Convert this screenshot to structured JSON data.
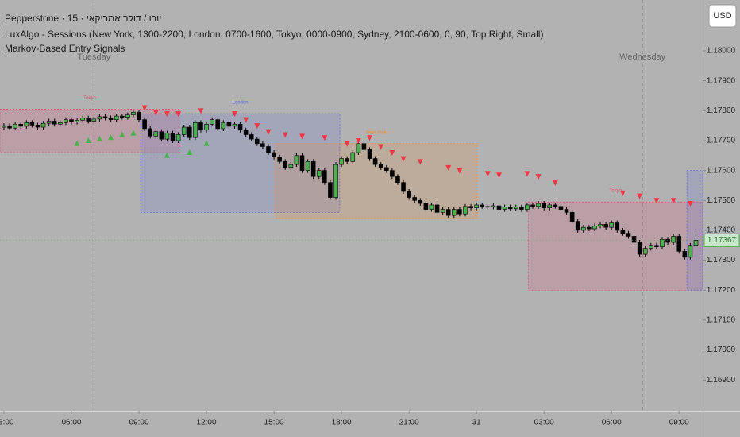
{
  "chart_data": {
    "type": "candlestick",
    "header": [
      "Pepperstone · 15 · יורו / דולר אמריקאי",
      "LuxAlgo - Sessions (New York, 1300-2200, London, 0700-1600, Tokyo, 0000-0900, Sydney, 2100-0600, 0, 90, Top Right, Small)",
      "Markov-Based Entry Signals"
    ],
    "currency": "USD",
    "xlim": [
      -0.7,
      124.2
    ],
    "ylim": [
      1.16797,
      1.1817
    ],
    "xticks": [
      {
        "value": 0,
        "label": "03:00"
      },
      {
        "value": 12,
        "label": "06:00"
      },
      {
        "value": 24,
        "label": "09:00"
      },
      {
        "value": 36,
        "label": "12:00"
      },
      {
        "value": 48,
        "label": "15:00"
      },
      {
        "value": 60,
        "label": "18:00"
      },
      {
        "value": 72,
        "label": "21:00"
      },
      {
        "value": 84,
        "label": "31"
      },
      {
        "value": 96,
        "label": "03:00"
      },
      {
        "value": 108,
        "label": "06:00"
      },
      {
        "value": 120,
        "label": "09:00"
      }
    ],
    "yticks": [
      {
        "value": 1.169,
        "label": "1.16900"
      },
      {
        "value": 1.17,
        "label": "1.17000"
      },
      {
        "value": 1.171,
        "label": "1.17100"
      },
      {
        "value": 1.172,
        "label": "1.17200"
      },
      {
        "value": 1.173,
        "label": "1.17300"
      },
      {
        "value": 1.174,
        "label": "1.17400"
      },
      {
        "value": 1.175,
        "label": "1.17500"
      },
      {
        "value": 1.176,
        "label": "1.17600"
      },
      {
        "value": 1.177,
        "label": "1.17700"
      },
      {
        "value": 1.178,
        "label": "1.17800"
      },
      {
        "value": 1.179,
        "label": "1.17900"
      },
      {
        "value": 1.18,
        "label": "1.18000"
      }
    ],
    "up_color": "#4caf50",
    "down_color": "#000000",
    "days": [
      {
        "label": "Tuesday",
        "index": 16
      },
      {
        "label": "Wednesday",
        "index": 113.5
      }
    ],
    "sessions": [
      {
        "name": "Tokyo",
        "start": -0.7,
        "end": 31.2,
        "top": 1.17805,
        "bottom": 1.1766,
        "color": "#e0506e"
      },
      {
        "name": "London",
        "start": 24.3,
        "end": 59.7,
        "top": 1.1779,
        "bottom": 1.1746,
        "color": "#5c6bd6"
      },
      {
        "name": "New York",
        "start": 48.3,
        "end": 84.1,
        "top": 1.1769,
        "bottom": 1.1744,
        "color": "#f08c30"
      },
      {
        "name": "Tokyo",
        "start": 93.2,
        "end": 124.2,
        "top": 1.17495,
        "bottom": 1.172,
        "color": "#e0506e"
      },
      {
        "start": 121.4,
        "end": 124.2,
        "top": 1.176,
        "bottom": 1.172,
        "color": "#5c6bd6"
      }
    ],
    "buy_signals": [
      [
        13,
        1.1769
      ],
      [
        15,
        1.177
      ],
      [
        17,
        1.17705
      ],
      [
        19,
        1.1771
      ],
      [
        21,
        1.1772
      ],
      [
        23,
        1.17725
      ],
      [
        29,
        1.1765
      ],
      [
        33,
        1.1766
      ],
      [
        36,
        1.1769
      ]
    ],
    "sell_signals": [
      [
        25,
        1.1781
      ],
      [
        27,
        1.17795
      ],
      [
        29,
        1.1779
      ],
      [
        31,
        1.1779
      ],
      [
        35,
        1.178
      ],
      [
        41,
        1.1779
      ],
      [
        43,
        1.1777
      ],
      [
        45,
        1.1775
      ],
      [
        47,
        1.1773
      ],
      [
        50,
        1.1772
      ],
      [
        53,
        1.17715
      ],
      [
        57,
        1.1771
      ],
      [
        61,
        1.1769
      ],
      [
        63,
        1.177
      ],
      [
        65,
        1.1771
      ],
      [
        67,
        1.1768
      ],
      [
        69,
        1.1766
      ],
      [
        71,
        1.1764
      ],
      [
        74,
        1.1763
      ],
      [
        79,
        1.1761
      ],
      [
        81,
        1.176
      ],
      [
        86,
        1.1759
      ],
      [
        88,
        1.17585
      ],
      [
        93,
        1.1759
      ],
      [
        95,
        1.1758
      ],
      [
        98,
        1.1756
      ],
      [
        110,
        1.17525
      ],
      [
        113,
        1.17515
      ],
      [
        116,
        1.175
      ],
      [
        119,
        1.175
      ],
      [
        122,
        1.1749
      ]
    ],
    "candles": [
      [
        1.17745,
        1.17758,
        1.17737,
        1.1775
      ],
      [
        1.1775,
        1.17758,
        1.17734,
        1.17742
      ],
      [
        1.17742,
        1.17763,
        1.17734,
        1.17755
      ],
      [
        1.17755,
        1.17763,
        1.1774,
        1.17748
      ],
      [
        1.17748,
        1.17768,
        1.1774,
        1.1776
      ],
      [
        1.1776,
        1.17768,
        1.17744,
        1.17752
      ],
      [
        1.17752,
        1.1776,
        1.17737,
        1.17745
      ],
      [
        1.17745,
        1.17766,
        1.17737,
        1.17758
      ],
      [
        1.17758,
        1.17773,
        1.1775,
        1.17765
      ],
      [
        1.17765,
        1.17773,
        1.17747,
        1.17755
      ],
      [
        1.17755,
        1.17768,
        1.17747,
        1.1776
      ],
      [
        1.1776,
        1.17778,
        1.17752,
        1.1777
      ],
      [
        1.1777,
        1.17778,
        1.17754,
        1.17762
      ],
      [
        1.17762,
        1.17776,
        1.17754,
        1.17768
      ],
      [
        1.17768,
        1.17783,
        1.1776,
        1.17775
      ],
      [
        1.17775,
        1.17783,
        1.17757,
        1.17765
      ],
      [
        1.17765,
        1.1778,
        1.17757,
        1.17772
      ],
      [
        1.17772,
        1.17788,
        1.17764,
        1.1778
      ],
      [
        1.1778,
        1.17788,
        1.17768,
        1.17776
      ],
      [
        1.17776,
        1.17784,
        1.17762,
        1.1777
      ],
      [
        1.1777,
        1.1779,
        1.17762,
        1.17782
      ],
      [
        1.17782,
        1.1779,
        1.1777,
        1.17778
      ],
      [
        1.17778,
        1.17794,
        1.1777,
        1.17786
      ],
      [
        1.17786,
        1.17803,
        1.17778,
        1.17795
      ],
      [
        1.17795,
        1.17803,
        1.17762,
        1.1777
      ],
      [
        1.1777,
        1.17778,
        1.17732,
        1.1774
      ],
      [
        1.1774,
        1.17748,
        1.17707,
        1.17715
      ],
      [
        1.17715,
        1.17738,
        1.17707,
        1.1773
      ],
      [
        1.1773,
        1.17738,
        1.17697,
        1.17705
      ],
      [
        1.17705,
        1.17733,
        1.17697,
        1.17725
      ],
      [
        1.17725,
        1.17733,
        1.17692,
        1.177
      ],
      [
        1.177,
        1.17728,
        1.17692,
        1.1772
      ],
      [
        1.1772,
        1.17753,
        1.17712,
        1.17745
      ],
      [
        1.17745,
        1.17753,
        1.17702,
        1.1771
      ],
      [
        1.1771,
        1.17768,
        1.17702,
        1.1776
      ],
      [
        1.1776,
        1.17768,
        1.17727,
        1.17735
      ],
      [
        1.17735,
        1.17763,
        1.17727,
        1.17755
      ],
      [
        1.17755,
        1.17778,
        1.17747,
        1.1777
      ],
      [
        1.1777,
        1.17778,
        1.17732,
        1.1774
      ],
      [
        1.1774,
        1.17768,
        1.17732,
        1.1776
      ],
      [
        1.1776,
        1.17768,
        1.1774,
        1.17748
      ],
      [
        1.17748,
        1.17763,
        1.1774,
        1.17755
      ],
      [
        1.17755,
        1.17763,
        1.17727,
        1.17735
      ],
      [
        1.17735,
        1.17743,
        1.17712,
        1.1772
      ],
      [
        1.1772,
        1.17728,
        1.17697,
        1.17705
      ],
      [
        1.17705,
        1.17713,
        1.17682,
        1.1769
      ],
      [
        1.1769,
        1.17698,
        1.17672,
        1.1768
      ],
      [
        1.1768,
        1.17688,
        1.17652,
        1.1766
      ],
      [
        1.1766,
        1.17668,
        1.17637,
        1.17645
      ],
      [
        1.17645,
        1.17653,
        1.17622,
        1.1763
      ],
      [
        1.1763,
        1.17638,
        1.17602,
        1.1761
      ],
      [
        1.1761,
        1.17628,
        1.17602,
        1.1762
      ],
      [
        1.1762,
        1.17658,
        1.17612,
        1.1765
      ],
      [
        1.1765,
        1.17658,
        1.17592,
        1.176
      ],
      [
        1.176,
        1.17638,
        1.17592,
        1.1763
      ],
      [
        1.1763,
        1.17638,
        1.17572,
        1.1758
      ],
      [
        1.1758,
        1.17608,
        1.17572,
        1.176
      ],
      [
        1.176,
        1.17608,
        1.17552,
        1.1756
      ],
      [
        1.1756,
        1.17568,
        1.17502,
        1.1751
      ],
      [
        1.1751,
        1.17628,
        1.17502,
        1.1762
      ],
      [
        1.1762,
        1.17648,
        1.17612,
        1.1764
      ],
      [
        1.1764,
        1.17648,
        1.17622,
        1.1763
      ],
      [
        1.1763,
        1.17668,
        1.17622,
        1.1766
      ],
      [
        1.1766,
        1.17698,
        1.17652,
        1.1769
      ],
      [
        1.1769,
        1.17698,
        1.17662,
        1.1767
      ],
      [
        1.1767,
        1.17678,
        1.17632,
        1.1764
      ],
      [
        1.1764,
        1.17648,
        1.17612,
        1.1762
      ],
      [
        1.1762,
        1.17628,
        1.17602,
        1.1761
      ],
      [
        1.1761,
        1.17618,
        1.17592,
        1.176
      ],
      [
        1.176,
        1.17608,
        1.17572,
        1.1758
      ],
      [
        1.1758,
        1.17588,
        1.17552,
        1.1756
      ],
      [
        1.1756,
        1.17568,
        1.17522,
        1.1753
      ],
      [
        1.1753,
        1.17538,
        1.17502,
        1.1751
      ],
      [
        1.1751,
        1.17518,
        1.17492,
        1.175
      ],
      [
        1.175,
        1.17508,
        1.17482,
        1.1749
      ],
      [
        1.1749,
        1.17498,
        1.17462,
        1.1747
      ],
      [
        1.1747,
        1.17493,
        1.17462,
        1.17485
      ],
      [
        1.17485,
        1.17493,
        1.17452,
        1.1746
      ],
      [
        1.1746,
        1.17478,
        1.17452,
        1.1747
      ],
      [
        1.1747,
        1.17478,
        1.17442,
        1.1745
      ],
      [
        1.1745,
        1.17478,
        1.17442,
        1.1747
      ],
      [
        1.1747,
        1.17478,
        1.17447,
        1.17455
      ],
      [
        1.17455,
        1.17488,
        1.17447,
        1.1748
      ],
      [
        1.1748,
        1.17488,
        1.17467,
        1.17475
      ],
      [
        1.17475,
        1.17493,
        1.17467,
        1.17485
      ],
      [
        1.17485,
        1.17493,
        1.17472,
        1.1748
      ],
      [
        1.1748,
        1.17488,
        1.1747,
        1.17478
      ],
      [
        1.17478,
        1.1749,
        1.1747,
        1.17482
      ],
      [
        1.17482,
        1.1749,
        1.17462,
        1.1747
      ],
      [
        1.1747,
        1.17486,
        1.17462,
        1.17478
      ],
      [
        1.17478,
        1.17486,
        1.17464,
        1.17472
      ],
      [
        1.17472,
        1.17486,
        1.17464,
        1.17478
      ],
      [
        1.17478,
        1.17486,
        1.17462,
        1.1747
      ],
      [
        1.1747,
        1.17493,
        1.17462,
        1.17485
      ],
      [
        1.17485,
        1.17493,
        1.17472,
        1.1748
      ],
      [
        1.1748,
        1.17498,
        1.17472,
        1.1749
      ],
      [
        1.1749,
        1.17498,
        1.17467,
        1.17475
      ],
      [
        1.17475,
        1.17493,
        1.17467,
        1.17485
      ],
      [
        1.17485,
        1.17493,
        1.17472,
        1.1748
      ],
      [
        1.1748,
        1.17488,
        1.17462,
        1.1747
      ],
      [
        1.1747,
        1.17478,
        1.17452,
        1.1746
      ],
      [
        1.1746,
        1.17468,
        1.17422,
        1.1743
      ],
      [
        1.1743,
        1.17438,
        1.17392,
        1.174
      ],
      [
        1.174,
        1.17418,
        1.17392,
        1.1741
      ],
      [
        1.1741,
        1.17418,
        1.17397,
        1.17405
      ],
      [
        1.17405,
        1.17423,
        1.17397,
        1.17415
      ],
      [
        1.17415,
        1.17428,
        1.17407,
        1.1742
      ],
      [
        1.1742,
        1.17428,
        1.17402,
        1.1741
      ],
      [
        1.1741,
        1.17433,
        1.17402,
        1.17425
      ],
      [
        1.17425,
        1.17433,
        1.17392,
        1.174
      ],
      [
        1.174,
        1.17408,
        1.17382,
        1.1739
      ],
      [
        1.1739,
        1.17398,
        1.17372,
        1.1738
      ],
      [
        1.1738,
        1.17388,
        1.17352,
        1.1736
      ],
      [
        1.1736,
        1.17368,
        1.17312,
        1.1732
      ],
      [
        1.1732,
        1.17348,
        1.17312,
        1.1734
      ],
      [
        1.1734,
        1.17358,
        1.17332,
        1.1735
      ],
      [
        1.1735,
        1.17358,
        1.17337,
        1.17345
      ],
      [
        1.17345,
        1.17378,
        1.17337,
        1.1737
      ],
      [
        1.1737,
        1.17378,
        1.17352,
        1.1736
      ],
      [
        1.1736,
        1.17388,
        1.17352,
        1.1738
      ],
      [
        1.1738,
        1.17388,
        1.17322,
        1.1733
      ],
      [
        1.1733,
        1.17338,
        1.17302,
        1.1731
      ],
      [
        1.1731,
        1.17358,
        1.17302,
        1.1735
      ],
      [
        1.1735,
        1.17398,
        1.17342,
        1.17367
      ]
    ]
  }
}
